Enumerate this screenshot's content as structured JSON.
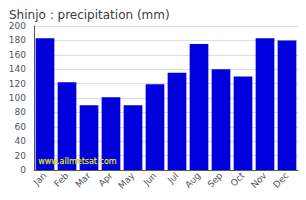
{
  "chart_data": {
    "type": "bar",
    "title": "Shinjo : precipitation (mm)",
    "categories": [
      "Jan",
      "Feb",
      "Mar",
      "Apr",
      "May",
      "Jun",
      "Jul",
      "Aug",
      "Sep",
      "Oct",
      "Nov",
      "Dec"
    ],
    "values": [
      183,
      122,
      90,
      101,
      90,
      119,
      135,
      175,
      140,
      130,
      183,
      180
    ],
    "color": "#0000dd",
    "ylim": [
      0,
      200
    ],
    "yticks": [
      0,
      20,
      40,
      60,
      80,
      100,
      120,
      140,
      160,
      180,
      200
    ],
    "grid": true,
    "annotations": [
      "www.allmetsat.com"
    ]
  }
}
